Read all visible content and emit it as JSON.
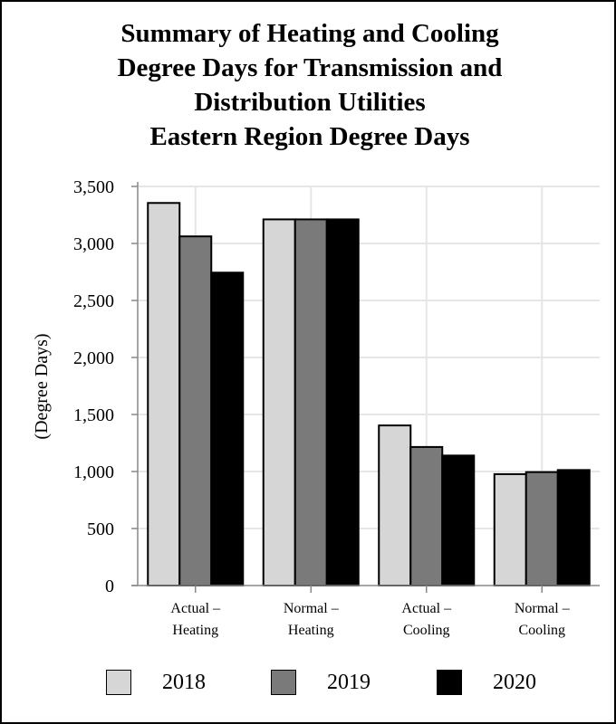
{
  "chart_data": {
    "type": "bar",
    "title": [
      "Summary of Heating and Cooling",
      "Degree Days for Transmission and",
      "Distribution Utilities",
      "Eastern Region Degree Days"
    ],
    "ylabel": "(Degree Days)",
    "xlabel": "",
    "ylim": [
      0,
      3500
    ],
    "yticks": [
      0,
      500,
      1000,
      1500,
      2000,
      2500,
      3000,
      3500
    ],
    "ytick_labels": [
      "0",
      "500",
      "1,000",
      "1,500",
      "2,000",
      "2,500",
      "3,000",
      "3,500"
    ],
    "categories": [
      [
        "Actual –",
        "Heating"
      ],
      [
        "Normal –",
        "Heating"
      ],
      [
        "Actual –",
        "Cooling"
      ],
      [
        "Normal –",
        "Cooling"
      ]
    ],
    "series": [
      {
        "name": "2018",
        "color": "#d6d6d6",
        "values": [
          3355,
          3211,
          1404,
          977
        ]
      },
      {
        "name": "2019",
        "color": "#7a7a7a",
        "values": [
          3062,
          3211,
          1215,
          995
        ]
      },
      {
        "name": "2020",
        "color": "#000000",
        "values": [
          2744,
          3211,
          1140,
          1013
        ]
      }
    ],
    "grid": true,
    "legend_position": "bottom"
  }
}
